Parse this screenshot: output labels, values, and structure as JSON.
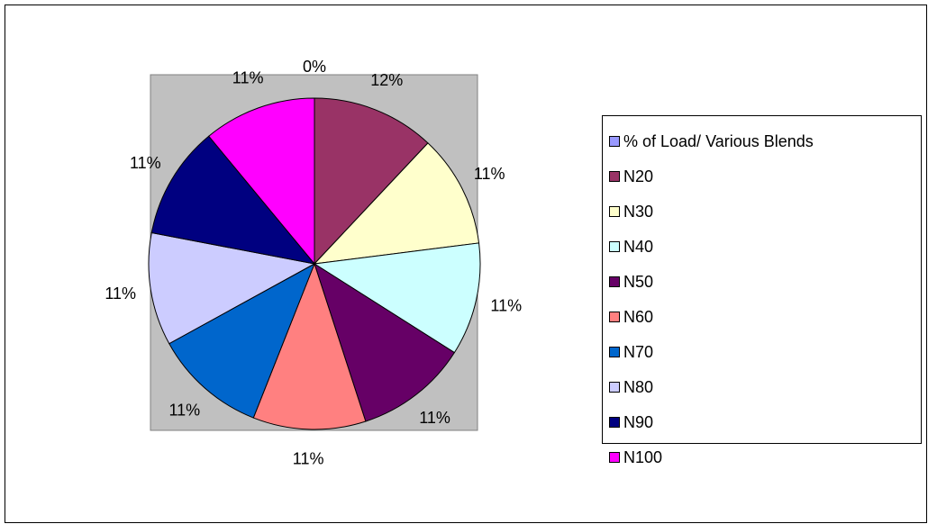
{
  "chart_data": {
    "type": "pie",
    "categories": [
      "% of Load/ Various Blends",
      "N20",
      "N30",
      "N40",
      "N50",
      "N60",
      "N70",
      "N80",
      "N90",
      "N100"
    ],
    "values": [
      0,
      12,
      11,
      11,
      11,
      11,
      11,
      11,
      11,
      11
    ],
    "value_labels": [
      "0%",
      "12%",
      "11%",
      "11%",
      "11%",
      "11%",
      "11%",
      "11%",
      "11%",
      "11%"
    ],
    "colors": [
      "#9999ff",
      "#993366",
      "#ffffcc",
      "#ccffff",
      "#660066",
      "#ff8080",
      "#0066cc",
      "#ccccff",
      "#000080",
      "#ff00ff"
    ],
    "legend": "right"
  }
}
